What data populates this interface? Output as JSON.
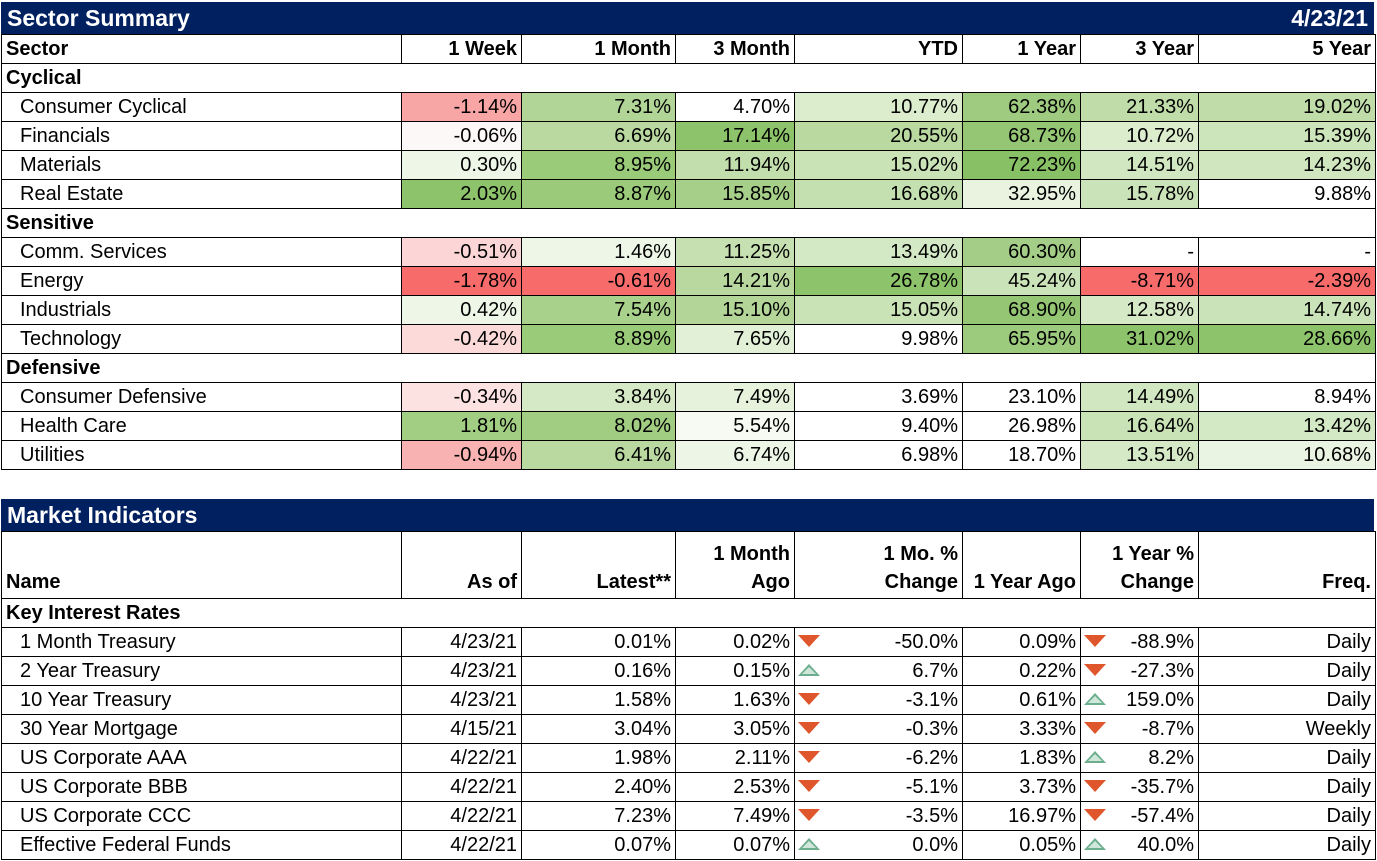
{
  "sector_summary": {
    "title": "Sector Summary",
    "date": "4/23/21",
    "columns": [
      "Sector",
      "1 Week",
      "1 Month",
      "3 Month",
      "YTD",
      "1 Year",
      "3 Year",
      "5 Year"
    ],
    "groups": [
      {
        "name": "Cyclical",
        "rows": [
          {
            "sector": "Consumer Cyclical",
            "values": [
              "-1.14%",
              "7.31%",
              "4.70%",
              "10.77%",
              "62.38%",
              "21.33%",
              "19.02%"
            ],
            "colors": [
              "#f8a5a5",
              "#b1d596",
              "#ffffff",
              "#dcedce",
              "#9ecb7f",
              "#c0dca9",
              "#c0dca9"
            ]
          },
          {
            "sector": "Financials",
            "values": [
              "-0.06%",
              "6.69%",
              "17.14%",
              "20.55%",
              "68.73%",
              "10.72%",
              "15.39%"
            ],
            "colors": [
              "#fdf8f8",
              "#b9d9a0",
              "#8dc36b",
              "#b9d9a0",
              "#94c673",
              "#dcedce",
              "#cde5bb"
            ]
          },
          {
            "sector": "Materials",
            "values": [
              "0.30%",
              "8.95%",
              "11.94%",
              "15.02%",
              "72.23%",
              "14.51%",
              "14.23%"
            ],
            "colors": [
              "#eef6e8",
              "#9acb79",
              "#c3dead",
              "#c9e2b6",
              "#88c066",
              "#d1e7c1",
              "#cfe6be"
            ]
          },
          {
            "sector": "Real Estate",
            "values": [
              "2.03%",
              "8.87%",
              "15.85%",
              "16.68%",
              "32.95%",
              "15.78%",
              "9.88%"
            ],
            "colors": [
              "#8dc36b",
              "#9bcb7a",
              "#a6d08a",
              "#c5e0b0",
              "#e9f3e0",
              "#cbe3b9",
              "#ffffff"
            ]
          }
        ]
      },
      {
        "name": "Sensitive",
        "rows": [
          {
            "sector": "Comm. Services",
            "values": [
              "-0.51%",
              "1.46%",
              "11.25%",
              "13.49%",
              "60.30%",
              "-",
              "-"
            ],
            "colors": [
              "#fcd6d6",
              "#eef6e8",
              "#c6e0b2",
              "#d3e8c4",
              "#a4ce87",
              "#ffffff",
              "#ffffff"
            ]
          },
          {
            "sector": "Energy",
            "values": [
              "-1.78%",
              "-0.61%",
              "14.21%",
              "26.78%",
              "45.24%",
              "-8.71%",
              "-2.39%"
            ],
            "colors": [
              "#f86b6b",
              "#f86b6b",
              "#b8d89f",
              "#8dc36b",
              "#cae3b8",
              "#f86b6b",
              "#f86b6b"
            ]
          },
          {
            "sector": "Industrials",
            "values": [
              "0.42%",
              "7.54%",
              "15.10%",
              "15.05%",
              "68.90%",
              "12.58%",
              "14.74%"
            ],
            "colors": [
              "#eef6e8",
              "#a8d18c",
              "#b3d698",
              "#c9e2b6",
              "#94c673",
              "#d6e9c7",
              "#cbe3b9"
            ]
          },
          {
            "sector": "Technology",
            "values": [
              "-0.42%",
              "8.89%",
              "7.65%",
              "9.98%",
              "65.95%",
              "31.02%",
              "28.66%"
            ],
            "colors": [
              "#fcdada",
              "#9acb79",
              "#e3f0d8",
              "#ffffff",
              "#9dcb7d",
              "#8dc36b",
              "#8dc36b"
            ]
          }
        ]
      },
      {
        "name": "Defensive",
        "rows": [
          {
            "sector": "Consumer Defensive",
            "values": [
              "-0.34%",
              "3.84%",
              "7.49%",
              "3.69%",
              "23.10%",
              "14.49%",
              "8.94%"
            ],
            "colors": [
              "#fde2e2",
              "#d5e9c6",
              "#e6f2dc",
              "#ffffff",
              "#ffffff",
              "#d1e7c1",
              "#ffffff"
            ]
          },
          {
            "sector": "Health Care",
            "values": [
              "1.81%",
              "8.02%",
              "5.54%",
              "9.40%",
              "26.98%",
              "16.64%",
              "13.42%"
            ],
            "colors": [
              "#a2ce84",
              "#a1cd83",
              "#f6faf3",
              "#ffffff",
              "#ffffff",
              "#c9e2b6",
              "#d3e8c4"
            ]
          },
          {
            "sector": "Utilities",
            "values": [
              "-0.94%",
              "6.41%",
              "6.74%",
              "6.98%",
              "18.70%",
              "13.51%",
              "10.68%"
            ],
            "colors": [
              "#f9b2b2",
              "#b9d9a0",
              "#edf5e6",
              "#ffffff",
              "#ffffff",
              "#d6e9c7",
              "#eaf4e2"
            ]
          }
        ]
      }
    ]
  },
  "market_indicators": {
    "title": "Market Indicators",
    "columns": {
      "name": "Name",
      "as_of": "As of",
      "latest": "Latest**",
      "month_ago_1": "1 Month",
      "month_ago_2": "Ago",
      "mo_change_1": "1 Mo. %",
      "mo_change_2": "Change",
      "year_ago": "1 Year Ago",
      "yr_change_1": "1 Year %",
      "yr_change_2": "Change",
      "freq": "Freq."
    },
    "group": "Key Interest Rates",
    "rows": [
      {
        "name": "1 Month Treasury",
        "as_of": "4/23/21",
        "latest": "0.01%",
        "month_ago": "0.02%",
        "mo_dir": "down",
        "mo_change": "-50.0%",
        "year_ago": "0.09%",
        "yr_dir": "down",
        "yr_change": "-88.9%",
        "freq": "Daily"
      },
      {
        "name": "2 Year Treasury",
        "as_of": "4/23/21",
        "latest": "0.16%",
        "month_ago": "0.15%",
        "mo_dir": "up",
        "mo_change": "6.7%",
        "year_ago": "0.22%",
        "yr_dir": "down",
        "yr_change": "-27.3%",
        "freq": "Daily"
      },
      {
        "name": "10 Year Treasury",
        "as_of": "4/23/21",
        "latest": "1.58%",
        "month_ago": "1.63%",
        "mo_dir": "down",
        "mo_change": "-3.1%",
        "year_ago": "0.61%",
        "yr_dir": "up",
        "yr_change": "159.0%",
        "freq": "Daily"
      },
      {
        "name": "30 Year Mortgage",
        "as_of": "4/15/21",
        "latest": "3.04%",
        "month_ago": "3.05%",
        "mo_dir": "down",
        "mo_change": "-0.3%",
        "year_ago": "3.33%",
        "yr_dir": "down",
        "yr_change": "-8.7%",
        "freq": "Weekly"
      },
      {
        "name": "US Corporate AAA",
        "as_of": "4/22/21",
        "latest": "1.98%",
        "month_ago": "2.11%",
        "mo_dir": "down",
        "mo_change": "-6.2%",
        "year_ago": "1.83%",
        "yr_dir": "up",
        "yr_change": "8.2%",
        "freq": "Daily"
      },
      {
        "name": "US Corporate BBB",
        "as_of": "4/22/21",
        "latest": "2.40%",
        "month_ago": "2.53%",
        "mo_dir": "down",
        "mo_change": "-5.1%",
        "year_ago": "3.73%",
        "yr_dir": "down",
        "yr_change": "-35.7%",
        "freq": "Daily"
      },
      {
        "name": "US Corporate CCC",
        "as_of": "4/22/21",
        "latest": "7.23%",
        "month_ago": "7.49%",
        "mo_dir": "down",
        "mo_change": "-3.5%",
        "year_ago": "16.97%",
        "yr_dir": "down",
        "yr_change": "-57.4%",
        "freq": "Daily"
      },
      {
        "name": "Effective Federal Funds",
        "as_of": "4/22/21",
        "latest": "0.07%",
        "month_ago": "0.07%",
        "mo_dir": "up",
        "mo_change": "0.0%",
        "year_ago": "0.05%",
        "yr_dir": "up",
        "yr_change": "40.0%",
        "freq": "Daily"
      }
    ]
  }
}
